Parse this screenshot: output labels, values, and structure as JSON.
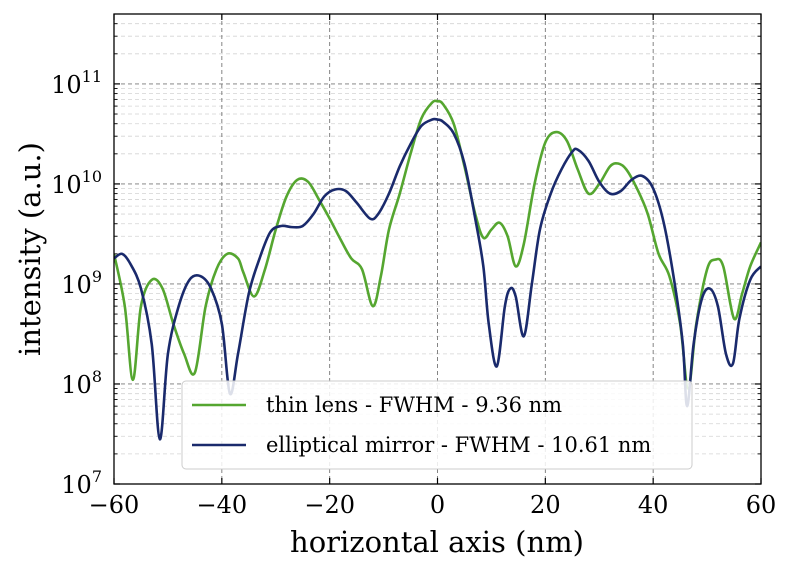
{
  "chart_data": {
    "type": "line",
    "xlabel": "horizontal axis (nm)",
    "ylabel": "intensity (a.u.)",
    "xlim": [
      -60,
      60
    ],
    "ylim": [
      10000000.0,
      500000000000.0
    ],
    "yscale": "log",
    "grid": true,
    "legend_position": "lower-center",
    "x_ticks": [
      {
        "value": -60,
        "label": "−60"
      },
      {
        "value": -40,
        "label": "−40"
      },
      {
        "value": -20,
        "label": "−20"
      },
      {
        "value": 0,
        "label": "0"
      },
      {
        "value": 20,
        "label": "20"
      },
      {
        "value": 40,
        "label": "40"
      },
      {
        "value": 60,
        "label": "60"
      }
    ],
    "y_ticks": [
      {
        "value": 10000000.0,
        "base": "10",
        "exp": "7"
      },
      {
        "value": 100000000.0,
        "base": "10",
        "exp": "8"
      },
      {
        "value": 1000000000.0,
        "base": "10",
        "exp": "9"
      },
      {
        "value": 10000000000.0,
        "base": "10",
        "exp": "10"
      },
      {
        "value": 100000000000.0,
        "base": "10",
        "exp": "11"
      }
    ],
    "series": [
      {
        "name": "thin lens - FWHM - 9.36 nm",
        "color": "#55a630",
        "points": [
          [
            -60,
            2000000000.0
          ],
          [
            -58,
            600000000.0
          ],
          [
            -56.5,
            110000000.0
          ],
          [
            -55,
            600000000.0
          ],
          [
            -53,
            1100000000.0
          ],
          [
            -51,
            900000000.0
          ],
          [
            -49,
            400000000.0
          ],
          [
            -47,
            200000000.0
          ],
          [
            -45,
            130000000.0
          ],
          [
            -43,
            600000000.0
          ],
          [
            -41,
            1400000000.0
          ],
          [
            -39,
            2000000000.0
          ],
          [
            -37,
            1800000000.0
          ],
          [
            -36,
            1300000000.0
          ],
          [
            -34,
            750000000.0
          ],
          [
            -32,
            1400000000.0
          ],
          [
            -30,
            3500000000.0
          ],
          [
            -28,
            7500000000.0
          ],
          [
            -26,
            11000000000.0
          ],
          [
            -24,
            10500000000.0
          ],
          [
            -22,
            7000000000.0
          ],
          [
            -20,
            4500000000.0
          ],
          [
            -18,
            2800000000.0
          ],
          [
            -16,
            1800000000.0
          ],
          [
            -14,
            1400000000.0
          ],
          [
            -12,
            600000000.0
          ],
          [
            -10.5,
            1200000000.0
          ],
          [
            -9,
            3500000000.0
          ],
          [
            -7,
            8000000000.0
          ],
          [
            -5,
            20000000000.0
          ],
          [
            -3,
            45000000000.0
          ],
          [
            -1,
            65000000000.0
          ],
          [
            0,
            67000000000.0
          ],
          [
            1,
            63000000000.0
          ],
          [
            3,
            40000000000.0
          ],
          [
            5,
            15000000000.0
          ],
          [
            7,
            5000000000.0
          ],
          [
            8.5,
            2900000000.0
          ],
          [
            10,
            3500000000.0
          ],
          [
            11.5,
            4100000000.0
          ],
          [
            13,
            3000000000.0
          ],
          [
            14.5,
            1500000000.0
          ],
          [
            16,
            2500000000.0
          ],
          [
            18,
            10000000000.0
          ],
          [
            20,
            26000000000.0
          ],
          [
            22,
            33000000000.0
          ],
          [
            24,
            27000000000.0
          ],
          [
            26,
            14000000000.0
          ],
          [
            28,
            8000000000.0
          ],
          [
            30,
            10000000000.0
          ],
          [
            32,
            15000000000.0
          ],
          [
            33.5,
            16000000000.0
          ],
          [
            35,
            14000000000.0
          ],
          [
            37,
            9000000000.0
          ],
          [
            39,
            5000000000.0
          ],
          [
            41,
            2000000000.0
          ],
          [
            43,
            1200000000.0
          ],
          [
            45,
            400000000.0
          ],
          [
            46.5,
            90000000.0
          ],
          [
            48,
            400000000.0
          ],
          [
            50,
            1400000000.0
          ],
          [
            51.5,
            1750000000.0
          ],
          [
            53,
            1500000000.0
          ],
          [
            55,
            450000000.0
          ],
          [
            56.5,
            800000000.0
          ],
          [
            58,
            1500000000.0
          ],
          [
            60,
            2600000000.0
          ]
        ]
      },
      {
        "name": "elliptical mirror - FWHM - 10.61 nm",
        "color": "#1a2a6c",
        "points": [
          [
            -60,
            1800000000.0
          ],
          [
            -58.5,
            2000000000.0
          ],
          [
            -57,
            1600000000.0
          ],
          [
            -55,
            900000000.0
          ],
          [
            -53,
            250000000.0
          ],
          [
            -51.5,
            28000000.0
          ],
          [
            -50,
            200000000.0
          ],
          [
            -48,
            600000000.0
          ],
          [
            -46,
            1100000000.0
          ],
          [
            -44,
            1200000000.0
          ],
          [
            -42,
            900000000.0
          ],
          [
            -40,
            400000000.0
          ],
          [
            -38.5,
            80000000.0
          ],
          [
            -37,
            200000000.0
          ],
          [
            -35,
            800000000.0
          ],
          [
            -33,
            1800000000.0
          ],
          [
            -31,
            3300000000.0
          ],
          [
            -29,
            3800000000.0
          ],
          [
            -27,
            3700000000.0
          ],
          [
            -25,
            3800000000.0
          ],
          [
            -23,
            5000000000.0
          ],
          [
            -21,
            7500000000.0
          ],
          [
            -19,
            8800000000.0
          ],
          [
            -17,
            8500000000.0
          ],
          [
            -15,
            6500000000.0
          ],
          [
            -12.5,
            4500000000.0
          ],
          [
            -11,
            5000000000.0
          ],
          [
            -9,
            8000000000.0
          ],
          [
            -7,
            15000000000.0
          ],
          [
            -5,
            25000000000.0
          ],
          [
            -3,
            38000000000.0
          ],
          [
            -1,
            44000000000.0
          ],
          [
            0,
            44000000000.0
          ],
          [
            1,
            42000000000.0
          ],
          [
            3,
            32000000000.0
          ],
          [
            5,
            16000000000.0
          ],
          [
            7,
            4500000000.0
          ],
          [
            8.5,
            1500000000.0
          ],
          [
            9.5,
            400000000.0
          ],
          [
            11,
            150000000.0
          ],
          [
            12.5,
            600000000.0
          ],
          [
            13.5,
            900000000.0
          ],
          [
            14.5,
            750000000.0
          ],
          [
            16,
            300000000.0
          ],
          [
            17.5,
            1000000000.0
          ],
          [
            19,
            3500000000.0
          ],
          [
            21,
            8000000000.0
          ],
          [
            23,
            14000000000.0
          ],
          [
            25,
            21000000000.0
          ],
          [
            26,
            22000000000.0
          ],
          [
            28,
            17000000000.0
          ],
          [
            30,
            10500000000.0
          ],
          [
            32,
            8000000000.0
          ],
          [
            34,
            8500000000.0
          ],
          [
            36,
            11000000000.0
          ],
          [
            38,
            12000000000.0
          ],
          [
            40,
            9000000000.0
          ],
          [
            42,
            4000000000.0
          ],
          [
            44,
            1000000000.0
          ],
          [
            45.5,
            250000000.0
          ],
          [
            46.3,
            60000000.0
          ],
          [
            47.5,
            250000000.0
          ],
          [
            49,
            700000000.0
          ],
          [
            50.5,
            900000000.0
          ],
          [
            52,
            600000000.0
          ],
          [
            53.5,
            200000000.0
          ],
          [
            54.8,
            160000000.0
          ],
          [
            56,
            450000000.0
          ],
          [
            58,
            1100000000.0
          ],
          [
            60,
            1500000000.0
          ]
        ]
      }
    ]
  }
}
